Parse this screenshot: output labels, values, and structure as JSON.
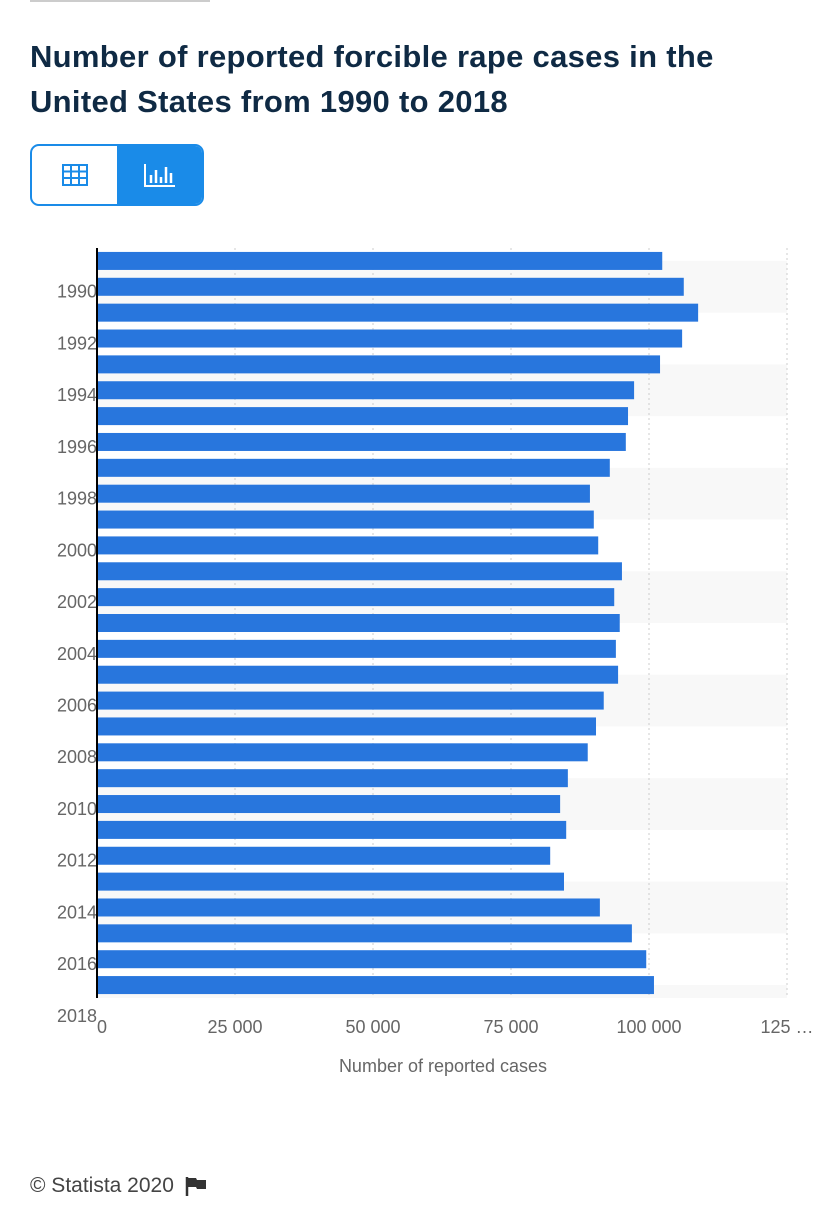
{
  "chart_data": {
    "type": "bar",
    "orientation": "horizontal",
    "title": "Number of reported forcible rape cases in the United States from 1990 to 2018",
    "categories": [
      "1990",
      null,
      "1992",
      null,
      "1994",
      null,
      "1996",
      null,
      "1998",
      null,
      "2000",
      null,
      "2002",
      null,
      "2004",
      null,
      "2006",
      null,
      "2008",
      null,
      "2010",
      null,
      "2012",
      null,
      "2014",
      null,
      "2016",
      null,
      "2018"
    ],
    "values": [
      102400,
      106300,
      108900,
      106000,
      102000,
      97300,
      96200,
      95800,
      92900,
      89300,
      90000,
      90800,
      95100,
      93700,
      94700,
      94000,
      94400,
      91800,
      90400,
      88900,
      85300,
      83900,
      85000,
      82100,
      84600,
      91100,
      96900,
      99500,
      100900
    ],
    "color": "#2876dd",
    "xlabel": "Number of reported cases",
    "xlim": [
      0,
      125000
    ],
    "xticks": [
      0,
      {
        "value": 25000,
        "label": "25 000"
      },
      {
        "value": 50000,
        "label": "50 000"
      },
      {
        "value": 75000,
        "label": "75 000"
      },
      {
        "value": 100000,
        "label": "100 000"
      },
      {
        "value": 125000,
        "label": "125 …"
      }
    ],
    "grid": true,
    "source": "© Statista 2020"
  }
}
